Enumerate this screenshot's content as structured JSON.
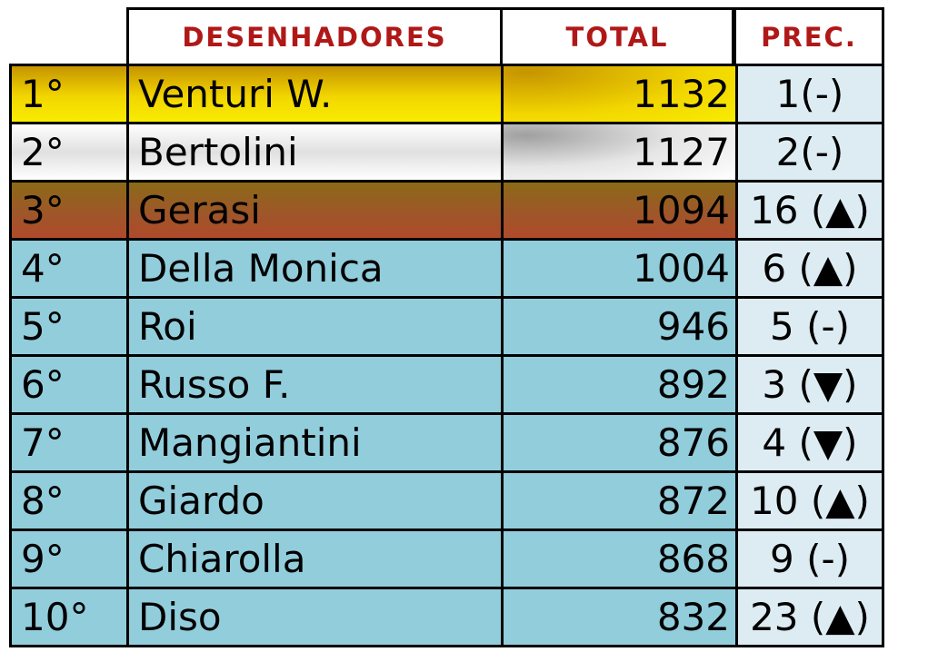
{
  "headers": {
    "name": "DESENHADORES",
    "total": "TOTAL",
    "prec": "PREC."
  },
  "rows": [
    {
      "rank": "1°",
      "name": "Venturi W.",
      "total": "1132",
      "prec": "1(-)",
      "tier": "gold"
    },
    {
      "rank": "2°",
      "name": "Bertolini",
      "total": "1127",
      "prec": "2(-)",
      "tier": "silver"
    },
    {
      "rank": "3°",
      "name": "Gerasi",
      "total": "1094",
      "prec": "16 (▲)",
      "tier": "bronze"
    },
    {
      "rank": "4°",
      "name": "Della Monica",
      "total": "1004",
      "prec": "6 (▲)",
      "tier": "normal"
    },
    {
      "rank": "5°",
      "name": "Roi",
      "total": "946",
      "prec": "5 (-)",
      "tier": "normal"
    },
    {
      "rank": "6°",
      "name": "Russo F.",
      "total": "892",
      "prec": "3 (▼)",
      "tier": "normal"
    },
    {
      "rank": "7°",
      "name": "Mangiantini",
      "total": "876",
      "prec": "4 (▼)",
      "tier": "normal"
    },
    {
      "rank": "8°",
      "name": "Giardo",
      "total": "872",
      "prec": "10 (▲)",
      "tier": "normal"
    },
    {
      "rank": "9°",
      "name": "Chiarolla",
      "total": "868",
      "prec": "9 (-)",
      "tier": "normal"
    },
    {
      "rank": "10°",
      "name": "Diso",
      "total": "832",
      "prec": "23 (▲)",
      "tier": "normal"
    }
  ],
  "colors": {
    "header_text": "#b01818",
    "row_bg": "#92cddc",
    "prec_bg": "#dcecf2",
    "gold": "#f2d600",
    "silver": "#d9d9d9",
    "bronze": "#9a5a1e"
  }
}
